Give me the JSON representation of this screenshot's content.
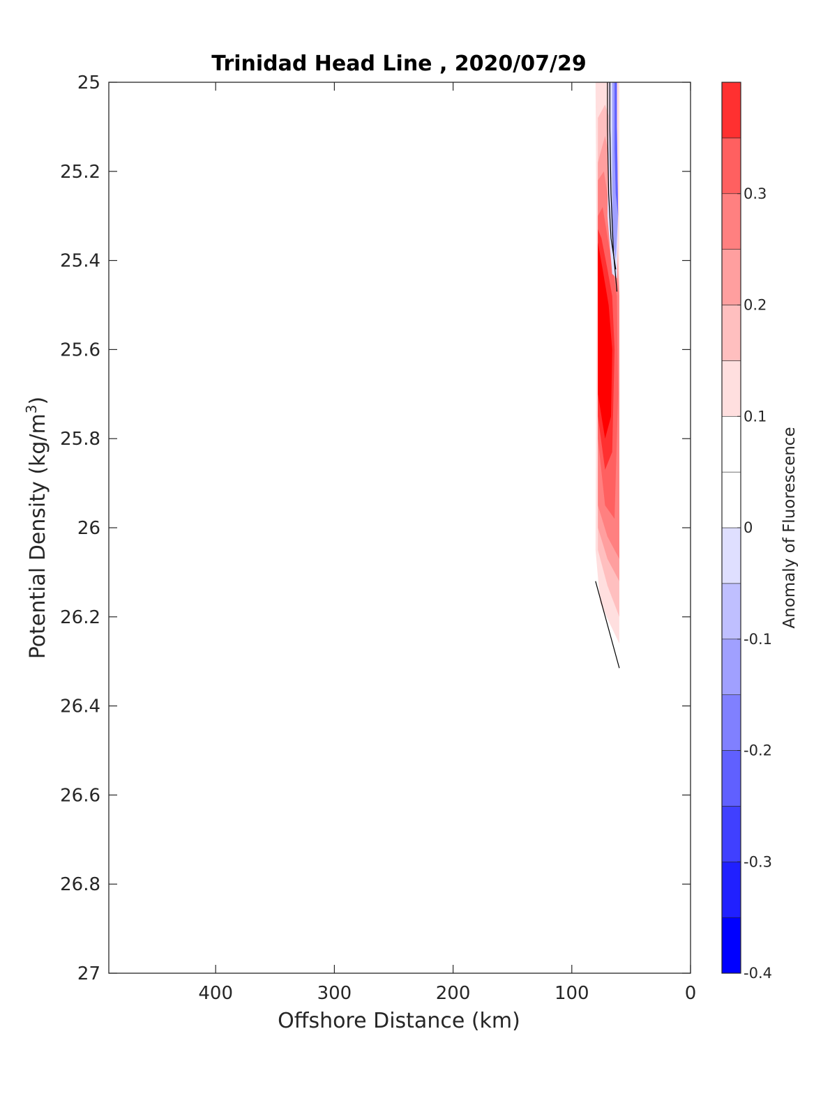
{
  "chart_data": {
    "type": "contour",
    "title": "Trinidad Head Line , 2020/07/29",
    "xlabel": "Offshore Distance (km)",
    "ylabel_main": "Potential Density (kg/m",
    "ylabel_sup": "3",
    "ylabel_end": ")",
    "xlim": [
      490,
      0
    ],
    "ylim": [
      25,
      27
    ],
    "y_reversed": true,
    "x_reversed": true,
    "xticks": [
      400,
      300,
      200,
      100,
      0
    ],
    "xtick_labels": [
      "400",
      "300",
      "200",
      "100",
      "0"
    ],
    "yticks": [
      25,
      25.2,
      25.4,
      25.6,
      25.8,
      26,
      26.2,
      26.4,
      26.6,
      26.8,
      27
    ],
    "ytick_labels": [
      "25",
      "25.2",
      "25.4",
      "25.6",
      "25.8",
      "26",
      "26.2",
      "26.4",
      "26.6",
      "26.8",
      "27"
    ],
    "colorbar": {
      "label": "Anomaly of Fluorescence",
      "range": [
        -0.4,
        0.4
      ],
      "levels": [
        -0.4,
        -0.35,
        -0.3,
        -0.25,
        -0.2,
        -0.15,
        -0.1,
        -0.05,
        0,
        0.05,
        0.1,
        0.15,
        0.2,
        0.25,
        0.3,
        0.35,
        0.4
      ],
      "colors": [
        "#0000ff",
        "#2020ff",
        "#4040ff",
        "#6060ff",
        "#8080ff",
        "#a0a0ff",
        "#bfbfff",
        "#dfdfff",
        "#ffffff",
        "#ffffff",
        "#ffdfdf",
        "#ffbfbf",
        "#ff9f9f",
        "#ff8080",
        "#ff6060",
        "#ff3030",
        "#ff0000"
      ],
      "ticks": [
        -0.4,
        -0.3,
        -0.2,
        -0.1,
        0,
        0.1,
        0.2,
        0.3
      ],
      "tick_labels": [
        "-0.4",
        "-0.3",
        "-0.2",
        "-0.1",
        "0",
        "0.1",
        "0.2",
        "0.3"
      ]
    },
    "filled_regions": [
      {
        "name": "",
        "color": "#ffdfdf",
        "points": [
          [
            80,
            25
          ],
          [
            79,
            25.45
          ],
          [
            80,
            26.05
          ],
          [
            76,
            26.17
          ],
          [
            60,
            26.26
          ],
          [
            60,
            25
          ],
          [
            70,
            25
          ]
        ]
      },
      {
        "name": "",
        "color": "#ffbfbf",
        "points": [
          [
            78,
            25.08
          ],
          [
            78,
            25.55
          ],
          [
            78,
            26.05
          ],
          [
            70,
            26.13
          ],
          [
            60,
            26.2
          ],
          [
            60,
            25.45
          ],
          [
            66,
            25.1
          ],
          [
            72,
            25.05
          ]
        ]
      },
      {
        "name": "",
        "color": "#ff9f9f",
        "points": [
          [
            78,
            25.18
          ],
          [
            78,
            26.0
          ],
          [
            70,
            26.07
          ],
          [
            60,
            26.12
          ],
          [
            60,
            25.47
          ],
          [
            66,
            25.2
          ],
          [
            72,
            25.12
          ]
        ]
      },
      {
        "name": "",
        "color": "#ff8080",
        "points": [
          [
            78,
            25.22
          ],
          [
            78,
            25.95
          ],
          [
            70,
            26.02
          ],
          [
            60,
            26.07
          ],
          [
            60,
            25.48
          ],
          [
            67,
            25.3
          ],
          [
            73,
            25.2
          ]
        ]
      },
      {
        "name": "",
        "color": "#ff6060",
        "points": [
          [
            78,
            25.3
          ],
          [
            78,
            25.8
          ],
          [
            72,
            25.95
          ],
          [
            64,
            25.98
          ],
          [
            61,
            25.7
          ],
          [
            62,
            25.48
          ],
          [
            68,
            25.38
          ],
          [
            74,
            25.28
          ]
        ]
      },
      {
        "name": "",
        "color": "#ff3030",
        "points": [
          [
            78,
            25.33
          ],
          [
            78,
            25.75
          ],
          [
            72,
            25.87
          ],
          [
            66,
            25.83
          ],
          [
            64,
            25.6
          ],
          [
            66,
            25.48
          ],
          [
            70,
            25.42
          ],
          [
            75,
            25.35
          ]
        ]
      },
      {
        "name": "",
        "color": "#ff0000",
        "points": [
          [
            78,
            25.36
          ],
          [
            78,
            25.7
          ],
          [
            72,
            25.8
          ],
          [
            67,
            25.75
          ],
          [
            66,
            25.6
          ],
          [
            69,
            25.5
          ],
          [
            74,
            25.42
          ]
        ]
      },
      {
        "name": "",
        "color": "#dfdfff",
        "points": [
          [
            69,
            25
          ],
          [
            69,
            25.1
          ],
          [
            70,
            25.3
          ],
          [
            66,
            25.43
          ],
          [
            62,
            25.44
          ],
          [
            61,
            25.3
          ],
          [
            62,
            25.12
          ],
          [
            62,
            25
          ]
        ]
      },
      {
        "name": "",
        "color": "#a0a0ff",
        "points": [
          [
            66,
            25
          ],
          [
            66,
            25.1
          ],
          [
            66,
            25.35
          ],
          [
            63,
            25.4
          ],
          [
            61,
            25.3
          ],
          [
            62,
            25.1
          ],
          [
            62,
            25
          ]
        ]
      },
      {
        "name": "",
        "color": "#6060ff",
        "points": [
          [
            64,
            25
          ],
          [
            64,
            25.15
          ],
          [
            63,
            25.25
          ],
          [
            61,
            25.3
          ],
          [
            62,
            25.1
          ],
          [
            62,
            25
          ]
        ]
      }
    ],
    "contour_lines": [
      {
        "name": "",
        "points": [
          [
            68,
            25
          ],
          [
            68,
            25.1
          ],
          [
            67,
            25.25
          ],
          [
            65,
            25.38
          ],
          [
            62,
            25.47
          ]
        ]
      },
      {
        "name": "",
        "points": [
          [
            70,
            25
          ],
          [
            70,
            25.1
          ],
          [
            69,
            25.25
          ],
          [
            67,
            25.35
          ],
          [
            63,
            25.42
          ]
        ]
      },
      {
        "name": "",
        "points": [
          [
            80,
            26.12
          ],
          [
            60,
            26.315
          ]
        ]
      }
    ]
  }
}
